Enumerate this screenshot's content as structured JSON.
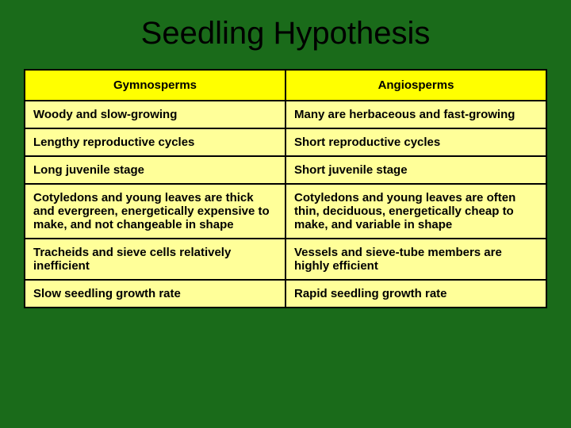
{
  "title": "Seedling Hypothesis",
  "table": {
    "type": "table",
    "background_color": "#1a6b1a",
    "header_bg": "#ffff00",
    "cell_bg": "#ffff99",
    "border_color": "#000000",
    "text_color": "#000000",
    "columns": [
      "Gymnosperms",
      "Angiosperms"
    ],
    "rows": [
      [
        "Woody and slow-growing",
        "Many are herbaceous and fast-growing"
      ],
      [
        "Lengthy reproductive cycles",
        "Short reproductive cycles"
      ],
      [
        "Long juvenile stage",
        "Short juvenile stage"
      ],
      [
        "Cotyledons and young leaves are thick and evergreen, energetically expensive to make, and not changeable in shape",
        "Cotyledons and young leaves are often thin, deciduous, energetically cheap to make, and variable in shape"
      ],
      [
        "Tracheids and sieve cells relatively inefficient",
        "Vessels and sieve-tube members are highly efficient"
      ],
      [
        "Slow seedling growth rate",
        "Rapid seedling growth rate"
      ]
    ]
  }
}
